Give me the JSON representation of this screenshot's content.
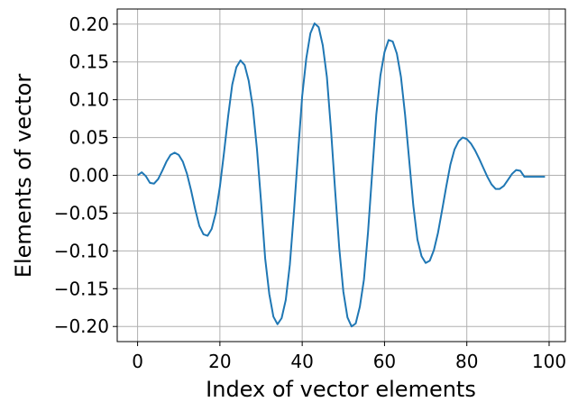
{
  "chart_data": {
    "type": "line",
    "title": "",
    "xlabel": "Index of vector elements",
    "ylabel": "Elements of vector",
    "xlim": [
      -4.95,
      103.95
    ],
    "ylim": [
      -0.22,
      0.22
    ],
    "x_ticks": [
      0,
      20,
      40,
      60,
      80,
      100
    ],
    "x_tick_labels": [
      "0",
      "20",
      "40",
      "60",
      "80",
      "100"
    ],
    "y_ticks": [
      -0.2,
      -0.15,
      -0.1,
      -0.05,
      0.0,
      0.05,
      0.1,
      0.15,
      0.2
    ],
    "y_tick_labels": [
      "−0.20",
      "−0.15",
      "−0.10",
      "−0.05",
      "0.00",
      "0.05",
      "0.10",
      "0.15",
      "0.20"
    ],
    "grid": true,
    "legend": "none",
    "series": [
      {
        "color": "#1f77b4",
        "x": [
          0,
          1,
          2,
          3,
          4,
          5,
          6,
          7,
          8,
          9,
          10,
          11,
          12,
          13,
          14,
          15,
          16,
          17,
          18,
          19,
          20,
          21,
          22,
          23,
          24,
          25,
          26,
          27,
          28,
          29,
          30,
          31,
          32,
          33,
          34,
          35,
          36,
          37,
          38,
          39,
          40,
          41,
          42,
          43,
          44,
          45,
          46,
          47,
          48,
          49,
          50,
          51,
          52,
          53,
          54,
          55,
          56,
          57,
          58,
          59,
          60,
          61,
          62,
          63,
          64,
          65,
          66,
          67,
          68,
          69,
          70,
          71,
          72,
          73,
          74,
          75,
          76,
          77,
          78,
          79,
          80,
          81,
          82,
          83,
          84,
          85,
          86,
          87,
          88,
          89,
          90,
          91,
          92,
          93,
          94,
          95,
          96,
          97,
          98,
          99
        ],
        "y": [
          0.0,
          0.004,
          -0.001,
          -0.01,
          -0.011,
          -0.005,
          0.006,
          0.018,
          0.027,
          0.03,
          0.027,
          0.018,
          0.002,
          -0.02,
          -0.045,
          -0.067,
          -0.078,
          -0.08,
          -0.071,
          -0.05,
          -0.015,
          0.03,
          0.078,
          0.12,
          0.143,
          0.152,
          0.146,
          0.125,
          0.09,
          0.035,
          -0.035,
          -0.11,
          -0.157,
          -0.187,
          -0.197,
          -0.189,
          -0.165,
          -0.118,
          -0.048,
          0.03,
          0.105,
          0.155,
          0.188,
          0.201,
          0.196,
          0.172,
          0.13,
          0.06,
          -0.02,
          -0.096,
          -0.154,
          -0.188,
          -0.2,
          -0.196,
          -0.174,
          -0.138,
          -0.075,
          0.003,
          0.08,
          0.132,
          0.163,
          0.179,
          0.177,
          0.161,
          0.13,
          0.08,
          0.02,
          -0.04,
          -0.085,
          -0.107,
          -0.116,
          -0.113,
          -0.099,
          -0.076,
          -0.046,
          -0.015,
          0.014,
          0.034,
          0.045,
          0.05,
          0.048,
          0.042,
          0.033,
          0.022,
          0.01,
          -0.002,
          -0.012,
          -0.018,
          -0.018,
          -0.014,
          -0.006,
          0.002,
          0.007,
          0.006,
          -0.002,
          -0.002,
          -0.002,
          -0.002,
          -0.002,
          -0.002
        ]
      }
    ]
  }
}
